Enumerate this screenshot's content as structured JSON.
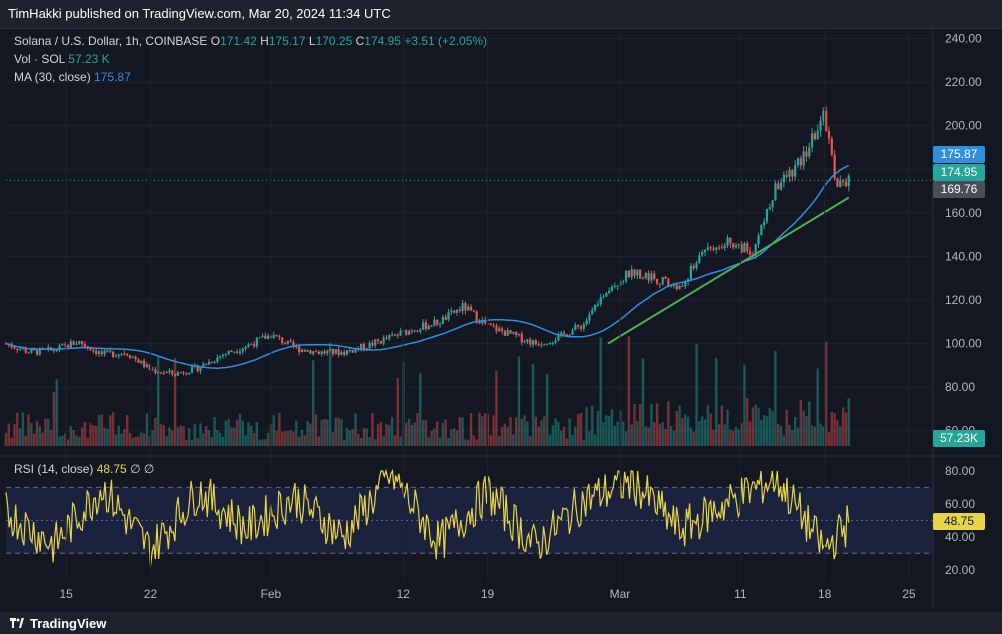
{
  "header": {
    "publisher": "TimHakki published on TradingView.com, Mar 20, 2024 11:34 UTC"
  },
  "legend": {
    "symbol": "Solana / U.S. Dollar, 1h, COINBASE",
    "o_label": "O",
    "o_value": "171.42",
    "h_label": "H",
    "h_value": "175.17",
    "l_label": "L",
    "l_value": "170.25",
    "c_label": "C",
    "c_value": "174.95",
    "change": "+3.51 (+2.05%)",
    "vol_label": "Vol · SOL",
    "vol_value": "57.23 K",
    "ma_label": "MA (30, close)",
    "ma_value": "175.87",
    "rsi_label": "RSI (14, close)",
    "rsi_value": "48.75",
    "rsi_extra": "∅ ∅"
  },
  "footer": {
    "brand": "TradingView"
  },
  "colors": {
    "background": "#131722",
    "up": "#26a69a",
    "down": "#ef5350",
    "ma": "#2f8fdf",
    "trendline": "#4caf50",
    "rsi": "#e8d447",
    "rsi_band": "#1c2543"
  },
  "chart_data": [
    {
      "type": "candlestick",
      "series": [
        {
          "name": "Solana / U.S. Dollar, 1h, COINBASE",
          "x": [
            "Jan 10",
            "Jan 12",
            "Jan 14",
            "Jan 16",
            "Jan 18",
            "Jan 20",
            "Jan 22",
            "Jan 24",
            "Jan 26",
            "Jan 28",
            "Jan 30",
            "Feb 1",
            "Feb 3",
            "Feb 5",
            "Feb 7",
            "Feb 9",
            "Feb 11",
            "Feb 13",
            "Feb 15",
            "Feb 17",
            "Feb 19",
            "Feb 21",
            "Feb 23",
            "Feb 25",
            "Feb 27",
            "Feb 29",
            "Mar 2",
            "Mar 4",
            "Mar 6",
            "Mar 8",
            "Mar 10",
            "Mar 12",
            "Mar 14",
            "Mar 16",
            "Mar 18",
            "Mar 19",
            "Mar 20"
          ],
          "close": [
            100,
            96,
            97,
            101,
            95,
            96,
            88,
            86,
            89,
            95,
            99,
            104,
            98,
            96,
            96,
            99,
            103,
            107,
            110,
            117,
            108,
            104,
            100,
            103,
            109,
            126,
            133,
            130,
            125,
            144,
            147,
            142,
            172,
            183,
            205,
            172,
            174.95
          ]
        },
        {
          "name": "MA (30, close)",
          "last": 175.87
        }
      ],
      "trendline": {
        "from": {
          "x": "Feb 29",
          "y": 100
        },
        "to": {
          "x": "Mar 20",
          "y": 167
        }
      },
      "y_ticks": [
        "240.00",
        "220.00",
        "200.00",
        "180.00",
        "160.00",
        "140.00",
        "120.00",
        "100.00",
        "80.00",
        "60.00"
      ],
      "ylim": [
        53,
        243
      ],
      "x_ticks": [
        "15",
        "22",
        "Feb",
        "12",
        "19",
        "Mar",
        "11",
        "18",
        "25"
      ],
      "x_range": [
        "Jan 10",
        "Mar 27"
      ],
      "grid": true,
      "price_labels": [
        "175.87",
        "174.95",
        "169.76"
      ]
    },
    {
      "type": "bar",
      "series": [
        {
          "name": "Vol · SOL",
          "last": "57.23 K"
        }
      ],
      "price_label": "57.23K"
    },
    {
      "type": "line",
      "series": [
        {
          "name": "RSI (14, close)",
          "x": [
            "Jan 10",
            "Jan 14",
            "Jan 18",
            "Jan 22",
            "Jan 26",
            "Jan 30",
            "Feb 3",
            "Feb 7",
            "Feb 11",
            "Feb 15",
            "Feb 19",
            "Feb 23",
            "Feb 27",
            "Mar 2",
            "Mar 6",
            "Mar 10",
            "Mar 14",
            "Mar 18",
            "Mar 20"
          ],
          "values": [
            55,
            35,
            70,
            32,
            68,
            45,
            64,
            40,
            78,
            36,
            67,
            34,
            62,
            74,
            44,
            61,
            76,
            32,
            48.75
          ]
        }
      ],
      "y_ticks": [
        "80.00",
        "60.00",
        "40.00",
        "20.00"
      ],
      "ylim": [
        15,
        83
      ],
      "band": [
        30,
        70
      ],
      "midline": 50,
      "price_label": "48.75"
    }
  ]
}
